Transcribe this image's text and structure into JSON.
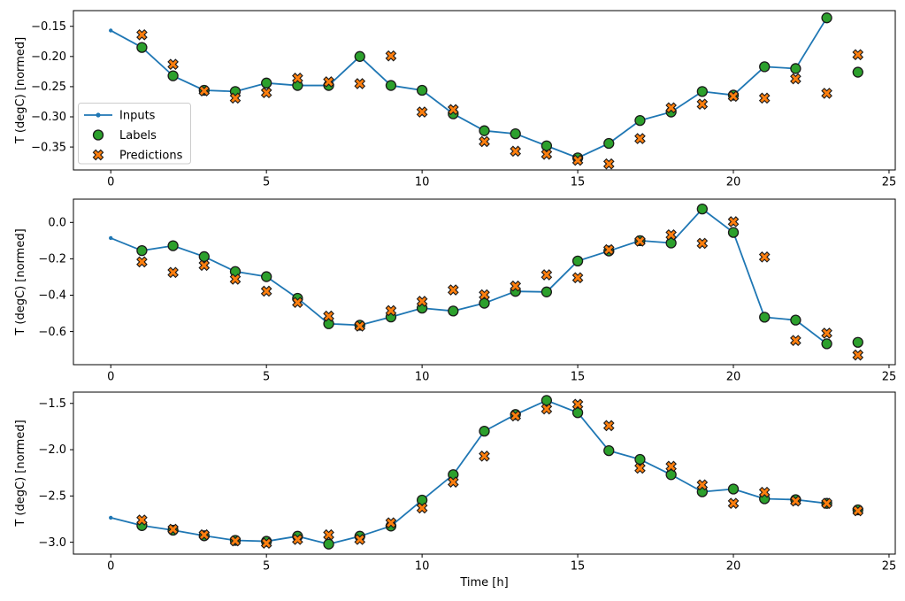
{
  "figure": {
    "background": "#ffffff",
    "xlabel": "Time [h]",
    "ylabel": "T (degC) [normed]",
    "colors": {
      "inputs": "#1f77b4",
      "labels": "#2ca02c",
      "predictions": "#ff7f0e",
      "marker_edge": "#1a1a1a",
      "axis": "#000000",
      "legend_border": "#cccccc",
      "legend_bg": "#ffffff"
    },
    "legend": {
      "position": "upper-left-of-first-subplot",
      "items": [
        {
          "label": "Inputs",
          "style": "line-dot"
        },
        {
          "label": "Labels",
          "style": "circle"
        },
        {
          "label": "Predictions",
          "style": "x"
        }
      ]
    }
  },
  "chart_data": [
    {
      "type": "line",
      "subtype": "line+scatter",
      "title": "",
      "xlabel": "",
      "ylabel": "T (degC) [normed]",
      "grid": false,
      "xlim": [
        -1.2,
        25.2
      ],
      "ylim": [
        -0.388,
        -0.124
      ],
      "xticks": [
        0,
        5,
        10,
        15,
        20,
        25
      ],
      "xtick_labels": [
        "0",
        "5",
        "10",
        "15",
        "20",
        "25"
      ],
      "yticks": [
        -0.15,
        -0.2,
        -0.25,
        -0.3,
        -0.35
      ],
      "ytick_labels": [
        "−0.15",
        "−0.20",
        "−0.25",
        "−0.30",
        "−0.35"
      ],
      "show_legend": true,
      "series": [
        {
          "name": "Inputs",
          "style": "line-dot",
          "x": [
            0,
            1,
            2,
            3,
            4,
            5,
            6,
            7,
            8,
            9,
            10,
            11,
            12,
            13,
            14,
            15,
            16,
            17,
            18,
            19,
            20,
            21,
            22,
            23
          ],
          "y": [
            -0.157,
            -0.185,
            -0.232,
            -0.256,
            -0.258,
            -0.244,
            -0.248,
            -0.248,
            -0.2,
            -0.248,
            -0.256,
            -0.295,
            -0.323,
            -0.328,
            -0.348,
            -0.368,
            -0.344,
            -0.306,
            -0.292,
            -0.258,
            -0.264,
            -0.217,
            -0.22,
            -0.136
          ]
        },
        {
          "name": "Labels",
          "style": "circle",
          "x": [
            1,
            2,
            3,
            4,
            5,
            6,
            7,
            8,
            9,
            10,
            11,
            12,
            13,
            14,
            15,
            16,
            17,
            18,
            19,
            20,
            21,
            22,
            23,
            24
          ],
          "y": [
            -0.185,
            -0.232,
            -0.256,
            -0.258,
            -0.244,
            -0.248,
            -0.248,
            -0.2,
            -0.248,
            -0.256,
            -0.295,
            -0.323,
            -0.328,
            -0.348,
            -0.368,
            -0.344,
            -0.306,
            -0.292,
            -0.258,
            -0.264,
            -0.217,
            -0.22,
            -0.136,
            -0.226
          ]
        },
        {
          "name": "Predictions",
          "style": "x",
          "x": [
            1,
            2,
            3,
            4,
            5,
            6,
            7,
            8,
            9,
            10,
            11,
            12,
            13,
            14,
            15,
            16,
            17,
            18,
            19,
            20,
            21,
            22,
            23,
            24
          ],
          "y": [
            -0.164,
            -0.213,
            -0.257,
            -0.269,
            -0.26,
            -0.236,
            -0.242,
            -0.245,
            -0.199,
            -0.292,
            -0.288,
            -0.341,
            -0.357,
            -0.362,
            -0.372,
            -0.378,
            -0.336,
            -0.285,
            -0.279,
            -0.266,
            -0.269,
            -0.237,
            -0.261,
            -0.197
          ]
        }
      ]
    },
    {
      "type": "line",
      "subtype": "line+scatter",
      "title": "",
      "xlabel": "",
      "ylabel": "T (degC) [normed]",
      "grid": false,
      "xlim": [
        -1.2,
        25.2
      ],
      "ylim": [
        -0.782,
        0.128
      ],
      "xticks": [
        0,
        5,
        10,
        15,
        20,
        25
      ],
      "xtick_labels": [
        "0",
        "5",
        "10",
        "15",
        "20",
        "25"
      ],
      "yticks": [
        0.0,
        -0.2,
        -0.4,
        -0.6
      ],
      "ytick_labels": [
        "0.0",
        "−0.2",
        "−0.4",
        "−0.6"
      ],
      "show_legend": false,
      "series": [
        {
          "name": "Inputs",
          "style": "line-dot",
          "x": [
            0,
            1,
            2,
            3,
            4,
            5,
            6,
            7,
            8,
            9,
            10,
            11,
            12,
            13,
            14,
            15,
            16,
            17,
            18,
            19,
            20,
            21,
            22,
            23
          ],
          "y": [
            -0.086,
            -0.155,
            -0.128,
            -0.188,
            -0.27,
            -0.298,
            -0.417,
            -0.557,
            -0.565,
            -0.52,
            -0.471,
            -0.487,
            -0.444,
            -0.379,
            -0.382,
            -0.212,
            -0.157,
            -0.1,
            -0.113,
            0.074,
            -0.055,
            -0.521,
            -0.537,
            -0.667
          ]
        },
        {
          "name": "Labels",
          "style": "circle",
          "x": [
            1,
            2,
            3,
            4,
            5,
            6,
            7,
            8,
            9,
            10,
            11,
            12,
            13,
            14,
            15,
            16,
            17,
            18,
            19,
            20,
            21,
            22,
            23,
            24
          ],
          "y": [
            -0.155,
            -0.128,
            -0.188,
            -0.27,
            -0.298,
            -0.417,
            -0.557,
            -0.565,
            -0.52,
            -0.471,
            -0.487,
            -0.444,
            -0.379,
            -0.382,
            -0.212,
            -0.157,
            -0.1,
            -0.113,
            0.074,
            -0.055,
            -0.521,
            -0.537,
            -0.667,
            -0.659
          ]
        },
        {
          "name": "Predictions",
          "style": "x",
          "x": [
            1,
            2,
            3,
            4,
            5,
            6,
            7,
            8,
            9,
            10,
            11,
            12,
            13,
            14,
            15,
            16,
            17,
            18,
            19,
            20,
            21,
            22,
            23,
            24
          ],
          "y": [
            -0.217,
            -0.275,
            -0.236,
            -0.312,
            -0.378,
            -0.44,
            -0.515,
            -0.57,
            -0.485,
            -0.434,
            -0.371,
            -0.398,
            -0.35,
            -0.288,
            -0.304,
            -0.15,
            -0.103,
            -0.068,
            -0.115,
            0.004,
            -0.19,
            -0.649,
            -0.609,
            -0.729
          ]
        }
      ]
    },
    {
      "type": "line",
      "subtype": "line+scatter",
      "title": "",
      "xlabel": "Time [h]",
      "ylabel": "T (degC) [normed]",
      "grid": false,
      "xlim": [
        -1.2,
        25.2
      ],
      "ylim": [
        -3.128,
        -1.378
      ],
      "xticks": [
        0,
        5,
        10,
        15,
        20,
        25
      ],
      "xtick_labels": [
        "0",
        "5",
        "10",
        "15",
        "20",
        "25"
      ],
      "yticks": [
        -1.5,
        -2.0,
        -2.5,
        -3.0
      ],
      "ytick_labels": [
        "−1.5",
        "−2.0",
        "−2.5",
        "−3.0"
      ],
      "show_legend": false,
      "series": [
        {
          "name": "Inputs",
          "style": "line-dot",
          "x": [
            0,
            1,
            2,
            3,
            4,
            5,
            6,
            7,
            8,
            9,
            10,
            11,
            12,
            13,
            14,
            15,
            16,
            17,
            18,
            19,
            20,
            21,
            22,
            23
          ],
          "y": [
            -2.735,
            -2.82,
            -2.87,
            -2.93,
            -2.98,
            -2.99,
            -2.935,
            -3.02,
            -2.935,
            -2.825,
            -2.545,
            -2.27,
            -1.8,
            -1.62,
            -1.468,
            -1.6,
            -2.01,
            -2.105,
            -2.27,
            -2.455,
            -2.425,
            -2.53,
            -2.54,
            -2.58
          ]
        },
        {
          "name": "Labels",
          "style": "circle",
          "x": [
            1,
            2,
            3,
            4,
            5,
            6,
            7,
            8,
            9,
            10,
            11,
            12,
            13,
            14,
            15,
            16,
            17,
            18,
            19,
            20,
            21,
            22,
            23,
            24
          ],
          "y": [
            -2.82,
            -2.87,
            -2.93,
            -2.98,
            -2.99,
            -2.935,
            -3.02,
            -2.935,
            -2.825,
            -2.545,
            -2.27,
            -1.8,
            -1.62,
            -1.468,
            -1.6,
            -2.01,
            -2.105,
            -2.27,
            -2.455,
            -2.425,
            -2.53,
            -2.54,
            -2.58,
            -2.65
          ]
        },
        {
          "name": "Predictions",
          "style": "x",
          "x": [
            1,
            2,
            3,
            4,
            5,
            6,
            7,
            8,
            9,
            10,
            11,
            12,
            13,
            14,
            15,
            16,
            17,
            18,
            19,
            20,
            21,
            22,
            23,
            24
          ],
          "y": [
            -2.76,
            -2.86,
            -2.92,
            -2.985,
            -3.01,
            -2.97,
            -2.92,
            -2.97,
            -2.79,
            -2.63,
            -2.35,
            -2.07,
            -1.635,
            -1.56,
            -1.51,
            -1.74,
            -2.2,
            -2.18,
            -2.38,
            -2.58,
            -2.46,
            -2.555,
            -2.58,
            -2.66
          ]
        }
      ]
    }
  ]
}
